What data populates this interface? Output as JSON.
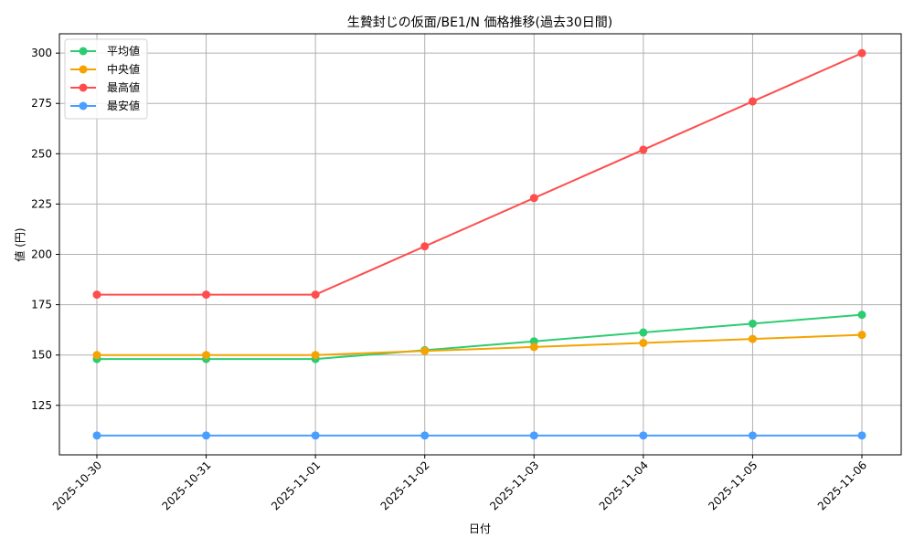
{
  "chart_data": {
    "type": "line",
    "title": "生贄封じの仮面/BE1/N 価格推移(過去30日間)",
    "xlabel": "日付",
    "ylabel": "値 (円)",
    "categories": [
      "2025-10-30",
      "2025-10-31",
      "2025-11-01",
      "2025-11-02",
      "2025-11-03",
      "2025-11-04",
      "2025-11-05",
      "2025-11-06"
    ],
    "series": [
      {
        "name": "平均値",
        "color": "#2ecc71",
        "values": [
          148,
          148,
          148,
          152.4,
          156.8,
          161.2,
          165.6,
          170
        ]
      },
      {
        "name": "中央値",
        "color": "#f5a300",
        "values": [
          150,
          150,
          150,
          152,
          154,
          156,
          158,
          160
        ]
      },
      {
        "name": "最高値",
        "color": "#ff4d4d",
        "values": [
          180,
          180,
          180,
          204,
          228,
          252,
          276,
          300
        ]
      },
      {
        "name": "最安値",
        "color": "#4a9eff",
        "values": [
          110,
          110,
          110,
          110,
          110,
          110,
          110,
          110
        ]
      }
    ],
    "yticks": [
      125,
      150,
      175,
      200,
      225,
      250,
      275,
      300
    ],
    "ylim": [
      100.4,
      309.6
    ],
    "grid": true,
    "legend_position": "upper left",
    "marker": "circle"
  }
}
